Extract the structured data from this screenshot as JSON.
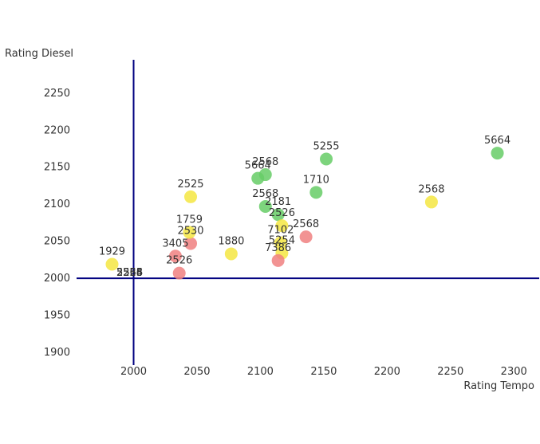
{
  "chart_data": {
    "type": "scatter",
    "xlabel": "Rating Tempo",
    "ylabel": "Rating Diesel",
    "xlim": [
      1955,
      2320
    ],
    "ylim": [
      1885,
      2295
    ],
    "xticks": [
      2000,
      2050,
      2100,
      2150,
      2200,
      2250,
      2300
    ],
    "yticks": [
      1900,
      1950,
      2000,
      2050,
      2100,
      2150,
      2200,
      2250
    ],
    "crosshair": {
      "x": 2000,
      "y": 2000,
      "color": "#000080"
    },
    "grid": false,
    "legend": "none",
    "points": [
      {
        "x": 1983,
        "y": 2019,
        "label": "1929",
        "color": "#f5e642"
      },
      {
        "x": 2000,
        "y": 2000,
        "label": "2568",
        "color": "#f5e642"
      },
      {
        "x": 2000,
        "y": 2000,
        "label": "2526",
        "color": "#f5e642"
      },
      {
        "x": 2000,
        "y": 2000,
        "label": "2554",
        "color": "#f5e642"
      },
      {
        "x": 2000,
        "y": 2000,
        "label": "5255",
        "color": "#f5e642"
      },
      {
        "x": 2036,
        "y": 2007,
        "label": "2526",
        "color": "#f08080"
      },
      {
        "x": 2033,
        "y": 2030,
        "label": "3405",
        "color": "#f08080"
      },
      {
        "x": 2045,
        "y": 2047,
        "label": "2530",
        "color": "#f08080"
      },
      {
        "x": 2044,
        "y": 2062,
        "label": "1759",
        "color": "#f5e642"
      },
      {
        "x": 2045,
        "y": 2110,
        "label": "2525",
        "color": "#f5e642"
      },
      {
        "x": 2077,
        "y": 2033,
        "label": "1880",
        "color": "#f5e642"
      },
      {
        "x": 2098,
        "y": 2135,
        "label": "5664",
        "color": "#66cc66"
      },
      {
        "x": 2104,
        "y": 2140,
        "label": "2568",
        "color": "#66cc66"
      },
      {
        "x": 2104,
        "y": 2097,
        "label": "2568",
        "color": "#66cc66"
      },
      {
        "x": 2114,
        "y": 2086,
        "label": "2181",
        "color": "#66cc66"
      },
      {
        "x": 2117,
        "y": 2071,
        "label": "2526",
        "color": "#f5e642"
      },
      {
        "x": 2116,
        "y": 2048,
        "label": "7102",
        "color": "#f5e642"
      },
      {
        "x": 2117,
        "y": 2034,
        "label": "5254",
        "color": "#f5e642"
      },
      {
        "x": 2114,
        "y": 2024,
        "label": "7386",
        "color": "#f08080"
      },
      {
        "x": 2136,
        "y": 2056,
        "label": "2568",
        "color": "#f08080"
      },
      {
        "x": 2144,
        "y": 2116,
        "label": "1710",
        "color": "#66cc66"
      },
      {
        "x": 2152,
        "y": 2161,
        "label": "5255",
        "color": "#66cc66"
      },
      {
        "x": 2235,
        "y": 2103,
        "label": "2568",
        "color": "#f5e642"
      },
      {
        "x": 2287,
        "y": 2169,
        "label": "5664",
        "color": "#66cc66"
      }
    ]
  }
}
